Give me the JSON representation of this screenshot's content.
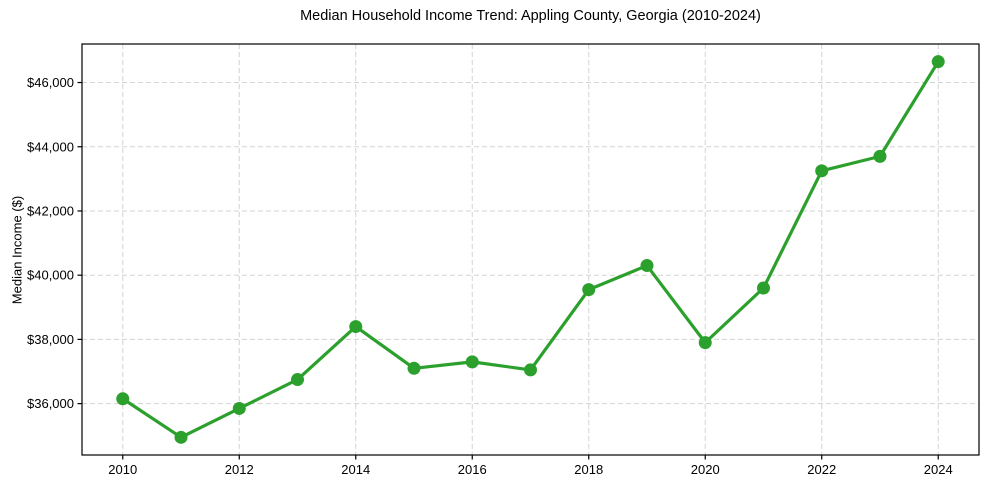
{
  "figure": {
    "background": "#ffffff",
    "frame_color": "#000000",
    "text_color": "#000000"
  },
  "chart_data": {
    "type": "line",
    "title": "Median Household Income Trend: Appling County, Georgia (2010-2024)",
    "xlabel": "",
    "ylabel": "Median Income ($)",
    "x": [
      2010,
      2011,
      2012,
      2013,
      2014,
      2015,
      2016,
      2017,
      2018,
      2019,
      2020,
      2021,
      2022,
      2023,
      2024
    ],
    "series": [
      {
        "name": "Median Household Income",
        "values": [
          36150,
          34950,
          35850,
          36750,
          38400,
          37100,
          37300,
          37050,
          39550,
          40300,
          37900,
          39600,
          43250,
          43700,
          46650
        ]
      }
    ],
    "xlim": [
      2009.3,
      2024.7
    ],
    "ylim": [
      34400,
      47200
    ],
    "x_ticks": [
      2010,
      2012,
      2014,
      2016,
      2018,
      2020,
      2022,
      2024
    ],
    "x_tick_labels": [
      "2010",
      "2012",
      "2014",
      "2016",
      "2018",
      "2020",
      "2022",
      "2024"
    ],
    "y_ticks": [
      36000,
      38000,
      40000,
      42000,
      44000,
      46000
    ],
    "y_tick_labels": [
      "$36,000",
      "$38,000",
      "$40,000",
      "$42,000",
      "$44,000",
      "$46,000"
    ],
    "grid": true,
    "grid_style": "dashed",
    "grid_color": "#d3d3d3",
    "legend_position": "none",
    "line_color": "#2ca02c",
    "marker": "circle",
    "marker_color": "#2ca02c"
  }
}
